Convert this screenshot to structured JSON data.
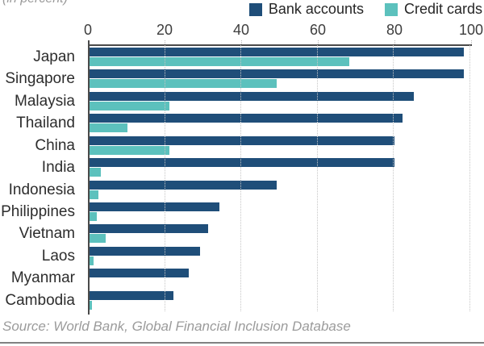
{
  "header": {
    "unit_label": "(in percent)"
  },
  "chart_data": {
    "type": "bar",
    "orientation": "horizontal",
    "title": "",
    "xlabel": "",
    "ylabel": "",
    "unit_label": "(in percent)",
    "categories": [
      "Japan",
      "Singapore",
      "Malaysia",
      "Thailand",
      "China",
      "India",
      "Indonesia",
      "Philippines",
      "Vietnam",
      "Laos",
      "Myanmar",
      "Cambodia"
    ],
    "series": [
      {
        "name": "Bank accounts",
        "color": "#1f4e79",
        "values": [
          98,
          98,
          85,
          82,
          80,
          80,
          49,
          34,
          31,
          29,
          26,
          22
        ]
      },
      {
        "name": "Credit cards",
        "color": "#5cc1bd",
        "values": [
          68,
          49,
          21,
          10,
          21,
          3,
          2.4,
          2,
          4.3,
          1,
          0,
          0.6
        ]
      }
    ],
    "xlim": [
      0,
      100
    ],
    "xticks": [
      0,
      20,
      40,
      60,
      80,
      100
    ],
    "axis_position": "top",
    "grid": "vertical-dotted",
    "legend_position": "top-right"
  },
  "footer": {
    "source": "Source: World Bank, Global Financial Inclusion Database"
  }
}
